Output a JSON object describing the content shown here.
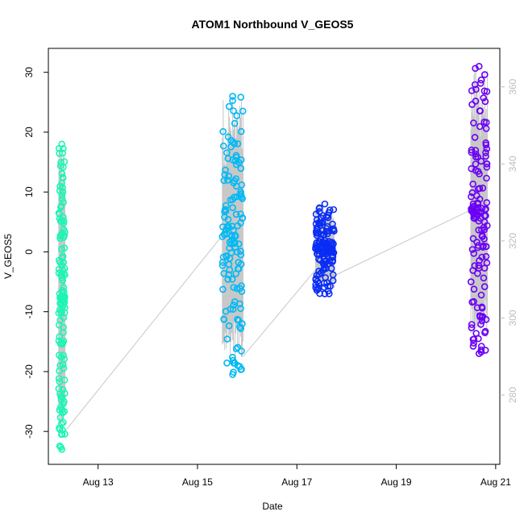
{
  "chart_data": {
    "type": "scatter",
    "title": "ATOM1 Northbound V_GEOS5",
    "xlabel": "Date",
    "ylabel": "V_GEOS5",
    "x_ticks": [
      "Aug 13",
      "Aug 15",
      "Aug 17",
      "Aug 19",
      "Aug 21"
    ],
    "y_ticks": [
      "-30",
      "-20",
      "-10",
      "0",
      "10",
      "20",
      "30"
    ],
    "y2_ticks": [
      "280",
      "300",
      "320",
      "340",
      "360"
    ],
    "xlim": [
      "2016-08-12 00:00",
      "2016-08-21 02:00"
    ],
    "ylim": [
      -35.5,
      34
    ],
    "y2lim": [
      262,
      370
    ],
    "y2_series_color": "#c8c8c8",
    "grid": false,
    "legend": "none",
    "series": [
      {
        "color": "#1cf5b5",
        "x_range": [
          "2016-08-12 05:00",
          "2016-08-12 08:00"
        ],
        "y_range": [
          -33,
          18
        ]
      },
      {
        "color": "#00b9f5",
        "x_range": [
          "2016-08-15 12:00",
          "2016-08-15 22:00"
        ],
        "y_range": [
          -20.5,
          26
        ]
      },
      {
        "color": "#0a2df5",
        "x_range": [
          "2016-08-17 09:00",
          "2016-08-17 18:00"
        ],
        "y_range": [
          -7,
          8
        ]
      },
      {
        "color": "#6a00f5",
        "x_range": [
          "2016-08-20 12:00",
          "2016-08-20 20:00"
        ],
        "y_range": [
          -17,
          31
        ]
      }
    ]
  }
}
